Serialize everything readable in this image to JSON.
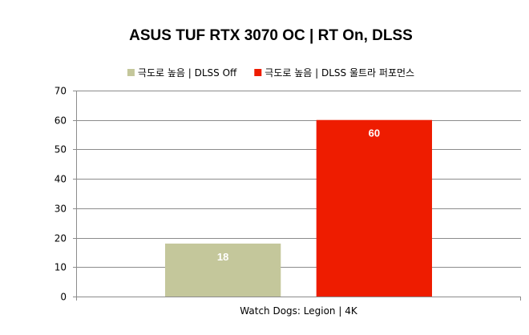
{
  "chart_data": {
    "type": "bar",
    "title": "ASUS TUF RTX 3070 OC | RT On, DLSS",
    "categories": [
      "Watch Dogs: Legion | 4K"
    ],
    "series": [
      {
        "name": "극도로 높음 | DLSS Off",
        "values": [
          18
        ],
        "color": "#c4c79b"
      },
      {
        "name": "극도로 높음 | DLSS 울트라 퍼포먼스",
        "values": [
          60
        ],
        "color": "#ee1c00"
      }
    ],
    "ylim": [
      0,
      70
    ],
    "yticks": [
      0,
      10,
      20,
      30,
      40,
      50,
      60,
      70
    ],
    "grid": true,
    "legend": "top-center",
    "xlabel": "",
    "ylabel": ""
  }
}
